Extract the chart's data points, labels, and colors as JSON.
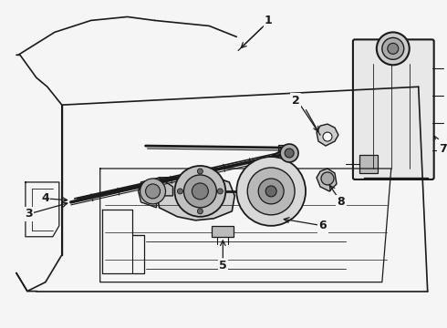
{
  "bg_color": "#f5f5f5",
  "line_color": "#1a1a1a",
  "fig_width": 4.9,
  "fig_height": 3.6,
  "dpi": 100,
  "label_fontsize": 9,
  "arrow_fontsize": 7
}
